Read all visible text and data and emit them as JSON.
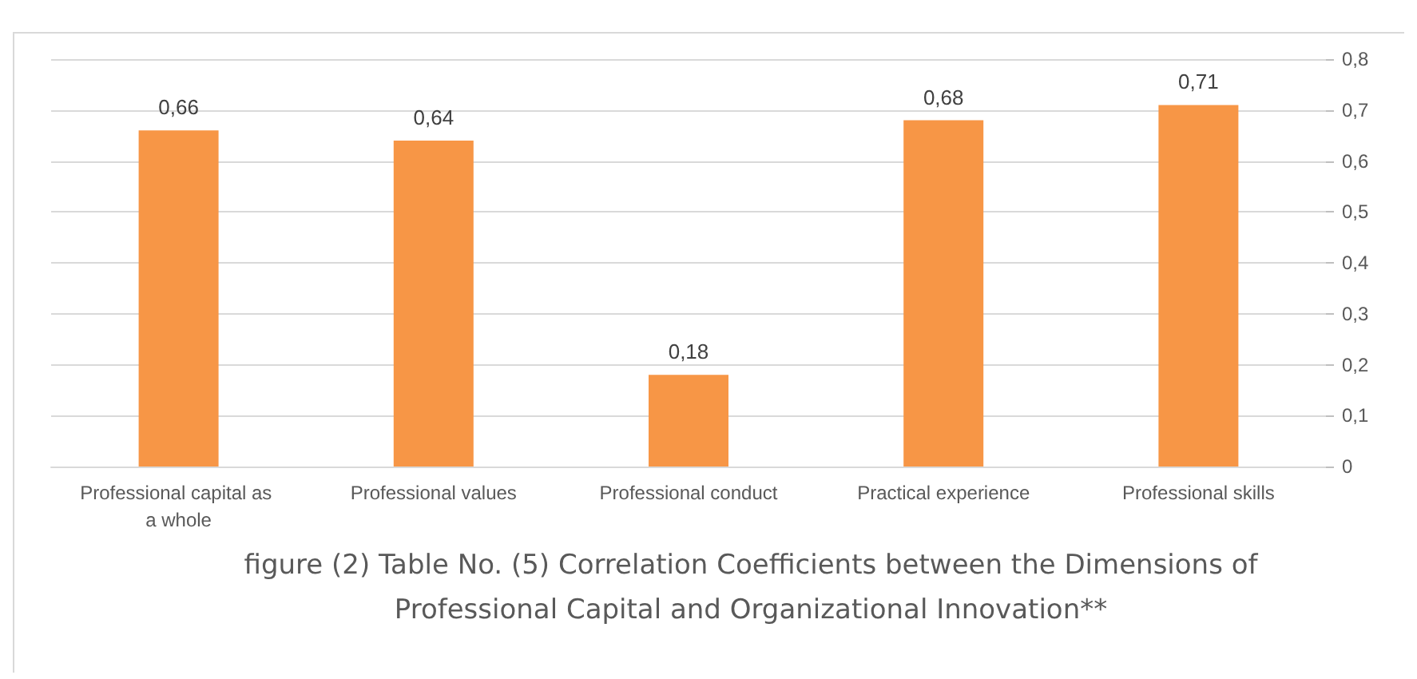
{
  "chart_data": {
    "type": "bar",
    "categories": [
      "Professional capital as a whole",
      "Professional values",
      "Professional conduct",
      "Practical experience",
      "Professional skills"
    ],
    "values": [
      0.66,
      0.64,
      0.18,
      0.68,
      0.71
    ],
    "value_labels": [
      "0,66",
      "0,64",
      "0,18",
      "0,68",
      "0,71"
    ],
    "color": "#f79646",
    "ylim": [
      0,
      0.8
    ],
    "yticks": [
      {
        "value": 0,
        "label": "0"
      },
      {
        "value": 0.1,
        "label": "0,1"
      },
      {
        "value": 0.2,
        "label": "0,2"
      },
      {
        "value": 0.3,
        "label": "0,3"
      },
      {
        "value": 0.4,
        "label": "0,4"
      },
      {
        "value": 0.5,
        "label": "0,5"
      },
      {
        "value": 0.6,
        "label": "0,6"
      },
      {
        "value": 0.7,
        "label": "0,7"
      },
      {
        "value": 0.8,
        "label": "0,8"
      }
    ],
    "grid": true,
    "annotations": [
      "figure (2) Table No. (5) Correlation Coefficients between the Dimensions of Professional Capital and Organizational Innovation**"
    ]
  }
}
